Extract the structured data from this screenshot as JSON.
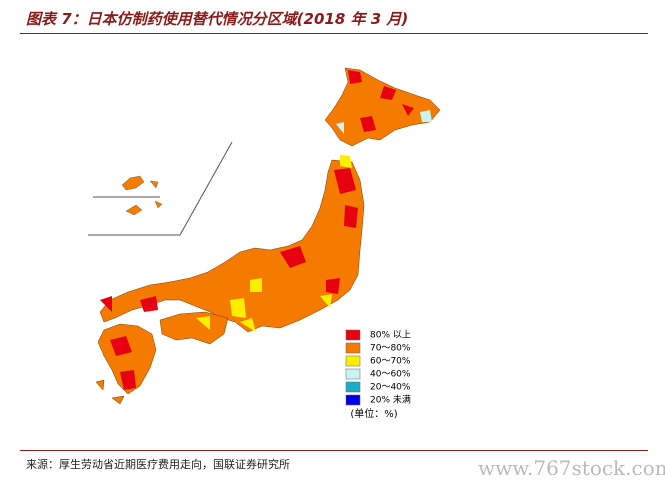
{
  "header": {
    "title": "图表 7：日本仿制药使用替代情况分区域(2018 年 3 月)"
  },
  "legend": {
    "items": [
      {
        "label": "80% 以上",
        "color": "#e60012"
      },
      {
        "label": "70～80%",
        "color": "#f47b00"
      },
      {
        "label": "60～70%",
        "color": "#ffee00"
      },
      {
        "label": "40～60%",
        "color": "#c8f4f4"
      },
      {
        "label": "20～40%",
        "color": "#1aaec8"
      },
      {
        "label": "20% 未满",
        "color": "#0000ee"
      }
    ],
    "unit": "(单位：%)"
  },
  "footer": {
    "source": "来源：厚生劳动省近期医疗费用走向，国联证券研究所",
    "watermark": "www.767stock.com"
  }
}
